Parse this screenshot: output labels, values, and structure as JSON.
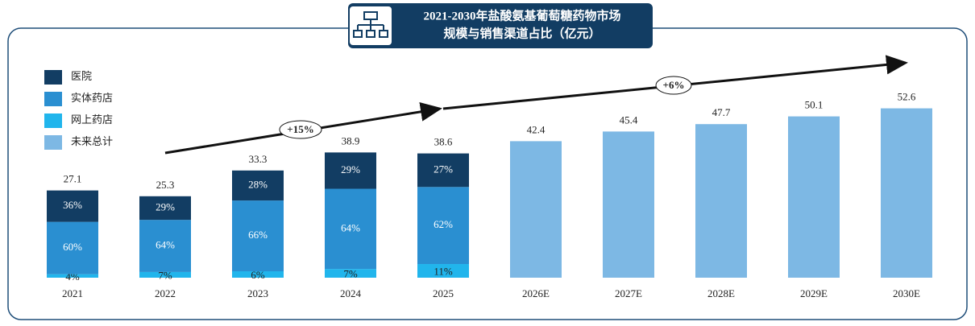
{
  "chart_data": {
    "type": "bar",
    "title": "2021-2030年盐酸氨基葡萄糖药物市场",
    "subtitle": "规模与销售渠道占比（亿元）",
    "categories": [
      "2021",
      "2022",
      "2023",
      "2024",
      "2025",
      "2026E",
      "2027E",
      "2028E",
      "2029E",
      "2030E"
    ],
    "totals": [
      27.1,
      25.3,
      33.3,
      38.9,
      38.6,
      null,
      null,
      null,
      null,
      null
    ],
    "series": [
      {
        "name": "医院",
        "color": "#123d63",
        "values": [
          36,
          29,
          28,
          29,
          27,
          null,
          null,
          null,
          null,
          null
        ],
        "value_labels": [
          "36%",
          "29%",
          "28%",
          "29%",
          "27%",
          null,
          null,
          null,
          null,
          null
        ]
      },
      {
        "name": "实体药店",
        "color": "#2a8fd1",
        "values": [
          60,
          64,
          66,
          64,
          62,
          null,
          null,
          null,
          null,
          null
        ],
        "value_labels": [
          "60%",
          "64%",
          "66%",
          "64%",
          "62%",
          null,
          null,
          null,
          null,
          null
        ]
      },
      {
        "name": "网上药店",
        "color": "#21b5ec",
        "values": [
          4,
          7,
          6,
          7,
          11,
          null,
          null,
          null,
          null,
          null
        ],
        "value_labels": [
          "4%",
          "7%",
          "6%",
          "7%",
          "11%",
          null,
          null,
          null,
          null,
          null
        ]
      },
      {
        "name": "未来总计",
        "color": "#7db8e4",
        "values": [
          null,
          null,
          null,
          null,
          null,
          42.4,
          45.4,
          47.7,
          50.1,
          52.6
        ]
      }
    ],
    "annotations": [
      "+15%",
      "+6%"
    ]
  }
}
